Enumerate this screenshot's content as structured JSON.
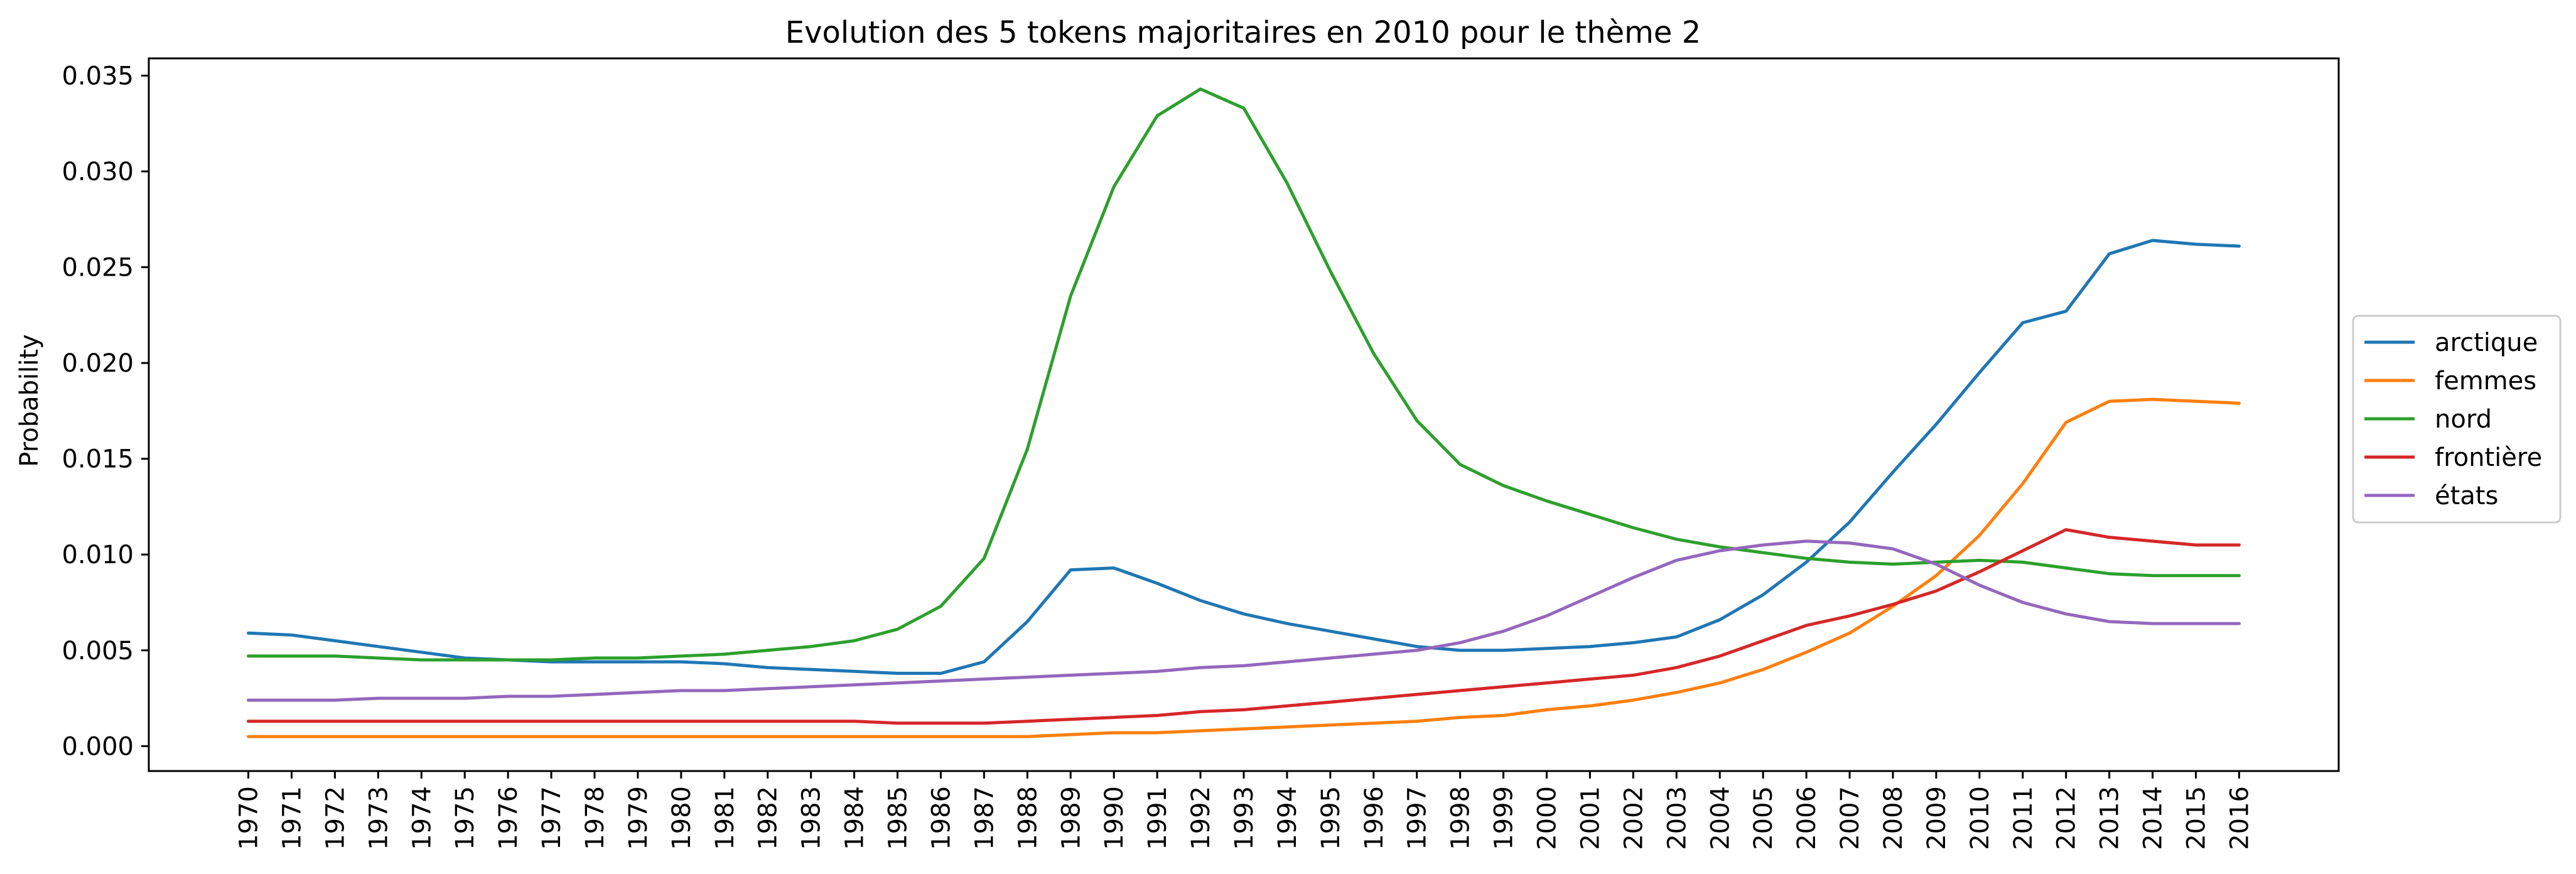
{
  "chart_data": {
    "type": "line",
    "title": "Evolution des 5 tokens majoritaires en 2010 pour le thème 2",
    "xlabel": "",
    "ylabel": "Probability",
    "x": [
      1970,
      1971,
      1972,
      1973,
      1974,
      1975,
      1976,
      1977,
      1978,
      1979,
      1980,
      1981,
      1982,
      1983,
      1984,
      1985,
      1986,
      1987,
      1988,
      1989,
      1990,
      1991,
      1992,
      1993,
      1994,
      1995,
      1996,
      1997,
      1998,
      1999,
      2000,
      2001,
      2002,
      2003,
      2004,
      2005,
      2006,
      2007,
      2008,
      2009,
      2010,
      2011,
      2012,
      2013,
      2014,
      2015,
      2016
    ],
    "ylim": [
      -0.0013,
      0.0359
    ],
    "yticks": [
      0.0,
      0.005,
      0.01,
      0.015,
      0.02,
      0.025,
      0.03,
      0.035
    ],
    "ytick_labels": [
      "0.000",
      "0.005",
      "0.010",
      "0.015",
      "0.020",
      "0.025",
      "0.030",
      "0.035"
    ],
    "grid": false,
    "legend_position": "center-right-outside",
    "series": [
      {
        "name": "arctique",
        "color": "#1f77b4",
        "values": [
          0.0059,
          0.0058,
          0.0055,
          0.0052,
          0.0049,
          0.0046,
          0.0045,
          0.0044,
          0.0044,
          0.0044,
          0.0044,
          0.0043,
          0.0041,
          0.004,
          0.0039,
          0.0038,
          0.0038,
          0.0044,
          0.0065,
          0.0092,
          0.0093,
          0.0085,
          0.0076,
          0.0069,
          0.0064,
          0.006,
          0.0056,
          0.0052,
          0.005,
          0.005,
          0.0051,
          0.0052,
          0.0054,
          0.0057,
          0.0066,
          0.0079,
          0.0096,
          0.0117,
          0.0143,
          0.0168,
          0.0195,
          0.0221,
          0.0227,
          0.0257,
          0.0264,
          0.0262,
          0.0261
        ]
      },
      {
        "name": "femmes",
        "color": "#ff7f0e",
        "values": [
          0.0005,
          0.0005,
          0.0005,
          0.0005,
          0.0005,
          0.0005,
          0.0005,
          0.0005,
          0.0005,
          0.0005,
          0.0005,
          0.0005,
          0.0005,
          0.0005,
          0.0005,
          0.0005,
          0.0005,
          0.0005,
          0.0005,
          0.0006,
          0.0007,
          0.0007,
          0.0008,
          0.0009,
          0.001,
          0.0011,
          0.0012,
          0.0013,
          0.0015,
          0.0016,
          0.0019,
          0.0021,
          0.0024,
          0.0028,
          0.0033,
          0.004,
          0.0049,
          0.0059,
          0.0073,
          0.0089,
          0.011,
          0.0137,
          0.0169,
          0.018,
          0.0181,
          0.018,
          0.0179
        ]
      },
      {
        "name": "nord",
        "color": "#2ca02c",
        "values": [
          0.0047,
          0.0047,
          0.0047,
          0.0046,
          0.0045,
          0.0045,
          0.0045,
          0.0045,
          0.0046,
          0.0046,
          0.0047,
          0.0048,
          0.005,
          0.0052,
          0.0055,
          0.0061,
          0.0073,
          0.0098,
          0.0155,
          0.0235,
          0.0292,
          0.0329,
          0.0343,
          0.0333,
          0.0294,
          0.0248,
          0.0205,
          0.017,
          0.0147,
          0.0136,
          0.0128,
          0.0121,
          0.0114,
          0.0108,
          0.0104,
          0.0101,
          0.0098,
          0.0096,
          0.0095,
          0.0096,
          0.0097,
          0.0096,
          0.0093,
          0.009,
          0.0089,
          0.0089,
          0.0089
        ]
      },
      {
        "name": "frontière",
        "color": "#d62728",
        "values": [
          0.0013,
          0.0013,
          0.0013,
          0.0013,
          0.0013,
          0.0013,
          0.0013,
          0.0013,
          0.0013,
          0.0013,
          0.0013,
          0.0013,
          0.0013,
          0.0013,
          0.0013,
          0.0012,
          0.0012,
          0.0012,
          0.0013,
          0.0014,
          0.0015,
          0.0016,
          0.0018,
          0.0019,
          0.0021,
          0.0023,
          0.0025,
          0.0027,
          0.0029,
          0.0031,
          0.0033,
          0.0035,
          0.0037,
          0.0041,
          0.0047,
          0.0055,
          0.0063,
          0.0068,
          0.0074,
          0.0081,
          0.0091,
          0.0102,
          0.0113,
          0.0109,
          0.0107,
          0.0105,
          0.0105
        ]
      },
      {
        "name": "états",
        "color": "#9467bd",
        "values": [
          0.0024,
          0.0024,
          0.0024,
          0.0025,
          0.0025,
          0.0025,
          0.0026,
          0.0026,
          0.0027,
          0.0028,
          0.0029,
          0.0029,
          0.003,
          0.0031,
          0.0032,
          0.0033,
          0.0034,
          0.0035,
          0.0036,
          0.0037,
          0.0038,
          0.0039,
          0.0041,
          0.0042,
          0.0044,
          0.0046,
          0.0048,
          0.005,
          0.0054,
          0.006,
          0.0068,
          0.0078,
          0.0088,
          0.0097,
          0.0102,
          0.0105,
          0.0107,
          0.0106,
          0.0103,
          0.0095,
          0.0084,
          0.0075,
          0.0069,
          0.0065,
          0.0064,
          0.0064,
          0.0064
        ]
      }
    ]
  }
}
